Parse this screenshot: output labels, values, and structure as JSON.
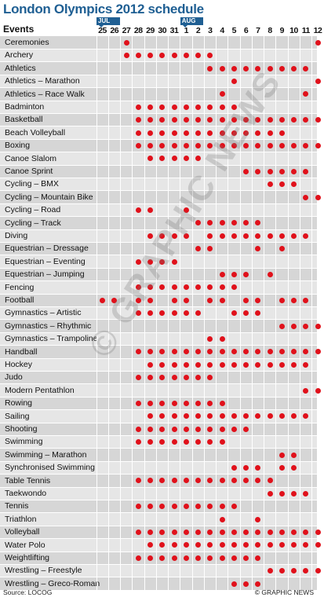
{
  "title": "London Olympics 2012 schedule",
  "events_header": "Events",
  "months": {
    "jul": "JUL",
    "aug": "AUG"
  },
  "days": [
    "25",
    "26",
    "27",
    "28",
    "29",
    "30",
    "31",
    "1",
    "2",
    "3",
    "4",
    "5",
    "6",
    "7",
    "8",
    "9",
    "10",
    "11",
    "12"
  ],
  "events": [
    {
      "name": "Ceremonies",
      "days": [
        "27",
        "12"
      ]
    },
    {
      "name": "Archery",
      "days": [
        "27",
        "28",
        "29",
        "30",
        "31",
        "1",
        "2",
        "3"
      ]
    },
    {
      "name": "Athletics",
      "days": [
        "3",
        "4",
        "5",
        "6",
        "7",
        "8",
        "9",
        "10",
        "11"
      ]
    },
    {
      "name": "Athletics – Marathon",
      "days": [
        "5",
        "12"
      ]
    },
    {
      "name": "Athletics – Race Walk",
      "days": [
        "4",
        "11"
      ]
    },
    {
      "name": "Badminton",
      "days": [
        "28",
        "29",
        "30",
        "31",
        "1",
        "2",
        "3",
        "4",
        "5"
      ]
    },
    {
      "name": "Basketball",
      "days": [
        "28",
        "29",
        "30",
        "31",
        "1",
        "2",
        "3",
        "4",
        "5",
        "6",
        "7",
        "8",
        "9",
        "10",
        "11",
        "12"
      ]
    },
    {
      "name": "Beach Volleyball",
      "days": [
        "28",
        "29",
        "30",
        "31",
        "1",
        "2",
        "3",
        "4",
        "5",
        "6",
        "7",
        "8",
        "9"
      ]
    },
    {
      "name": "Boxing",
      "days": [
        "28",
        "29",
        "30",
        "31",
        "1",
        "2",
        "3",
        "4",
        "5",
        "6",
        "7",
        "8",
        "9",
        "10",
        "11",
        "12"
      ]
    },
    {
      "name": "Canoe Slalom",
      "days": [
        "29",
        "30",
        "31",
        "1",
        "2"
      ]
    },
    {
      "name": "Canoe Sprint",
      "days": [
        "6",
        "7",
        "8",
        "9",
        "10",
        "11"
      ]
    },
    {
      "name": "Cycling – BMX",
      "days": [
        "8",
        "9",
        "10"
      ]
    },
    {
      "name": "Cycling – Mountain Bike",
      "days": [
        "11",
        "12"
      ]
    },
    {
      "name": "Cycling – Road",
      "days": [
        "28",
        "29",
        "1"
      ]
    },
    {
      "name": "Cycling – Track",
      "days": [
        "2",
        "3",
        "4",
        "5",
        "6",
        "7"
      ]
    },
    {
      "name": "Diving",
      "days": [
        "29",
        "30",
        "31",
        "1",
        "3",
        "4",
        "5",
        "6",
        "7",
        "8",
        "9",
        "10",
        "11"
      ]
    },
    {
      "name": "Equestrian – Dressage",
      "days": [
        "2",
        "3",
        "7",
        "9"
      ]
    },
    {
      "name": "Equestrian – Eventing",
      "days": [
        "28",
        "29",
        "30",
        "31"
      ]
    },
    {
      "name": "Equestrian – Jumping",
      "days": [
        "4",
        "5",
        "6",
        "8"
      ]
    },
    {
      "name": "Fencing",
      "days": [
        "28",
        "29",
        "30",
        "31",
        "1",
        "2",
        "3",
        "4",
        "5"
      ]
    },
    {
      "name": "Football",
      "days": [
        "25",
        "26",
        "28",
        "29",
        "31",
        "1",
        "3",
        "4",
        "6",
        "7",
        "9",
        "10",
        "11"
      ]
    },
    {
      "name": "Gymnastics – Artistic",
      "days": [
        "28",
        "29",
        "30",
        "31",
        "1",
        "2",
        "5",
        "6",
        "7"
      ]
    },
    {
      "name": "Gymnastics – Rhythmic",
      "days": [
        "9",
        "10",
        "11",
        "12"
      ]
    },
    {
      "name": "Gymnastics – Trampoline",
      "days": [
        "3",
        "4"
      ]
    },
    {
      "name": "Handball",
      "days": [
        "28",
        "29",
        "30",
        "31",
        "1",
        "2",
        "3",
        "4",
        "5",
        "6",
        "7",
        "8",
        "9",
        "10",
        "11",
        "12"
      ]
    },
    {
      "name": "Hockey",
      "days": [
        "29",
        "30",
        "31",
        "1",
        "2",
        "3",
        "4",
        "5",
        "6",
        "7",
        "8",
        "9",
        "10",
        "11"
      ]
    },
    {
      "name": "Judo",
      "days": [
        "28",
        "29",
        "30",
        "31",
        "1",
        "2",
        "3"
      ]
    },
    {
      "name": "Modern Pentathlon",
      "days": [
        "11",
        "12"
      ]
    },
    {
      "name": "Rowing",
      "days": [
        "28",
        "29",
        "30",
        "31",
        "1",
        "2",
        "3",
        "4"
      ]
    },
    {
      "name": "Sailing",
      "days": [
        "29",
        "30",
        "31",
        "1",
        "2",
        "3",
        "4",
        "5",
        "6",
        "7",
        "8",
        "9",
        "10",
        "11"
      ]
    },
    {
      "name": "Shooting",
      "days": [
        "28",
        "29",
        "30",
        "31",
        "1",
        "2",
        "3",
        "4",
        "5",
        "6"
      ]
    },
    {
      "name": "Swimming",
      "days": [
        "28",
        "29",
        "30",
        "31",
        "1",
        "2",
        "3",
        "4"
      ]
    },
    {
      "name": "Swimming – Marathon",
      "days": [
        "9",
        "10"
      ]
    },
    {
      "name": "Synchronised Swimming",
      "days": [
        "5",
        "6",
        "7",
        "9",
        "10"
      ]
    },
    {
      "name": "Table Tennis",
      "days": [
        "28",
        "29",
        "30",
        "31",
        "1",
        "2",
        "3",
        "4",
        "5",
        "6",
        "7",
        "8"
      ]
    },
    {
      "name": "Taekwondo",
      "days": [
        "8",
        "9",
        "10",
        "11"
      ]
    },
    {
      "name": "Tennis",
      "days": [
        "28",
        "29",
        "30",
        "31",
        "1",
        "2",
        "3",
        "4",
        "5"
      ]
    },
    {
      "name": "Triathlon",
      "days": [
        "4",
        "7"
      ]
    },
    {
      "name": "Volleyball",
      "days": [
        "28",
        "29",
        "30",
        "31",
        "1",
        "2",
        "3",
        "4",
        "5",
        "6",
        "7",
        "8",
        "9",
        "10",
        "11",
        "12"
      ]
    },
    {
      "name": "Water Polo",
      "days": [
        "29",
        "30",
        "31",
        "1",
        "2",
        "3",
        "4",
        "5",
        "6",
        "7",
        "8",
        "9",
        "10",
        "11",
        "12"
      ]
    },
    {
      "name": "Weightlifting",
      "days": [
        "28",
        "29",
        "30",
        "31",
        "1",
        "2",
        "3",
        "4",
        "5",
        "6",
        "7"
      ]
    },
    {
      "name": "Wrestling – Freestyle",
      "days": [
        "8",
        "9",
        "10",
        "11",
        "12"
      ]
    },
    {
      "name": "Wrestling – Greco-Roman",
      "days": [
        "5",
        "6",
        "7"
      ]
    }
  ],
  "footer": {
    "source": "Source: LOCOG",
    "credit": "© GRAPHIC NEWS"
  },
  "watermark": "© GRAPHIC NEWS",
  "colors": {
    "title": "#1f5f93",
    "dot": "#e0111b",
    "row_dark": "#d6d6d6",
    "row_light": "#e6e6e6"
  }
}
